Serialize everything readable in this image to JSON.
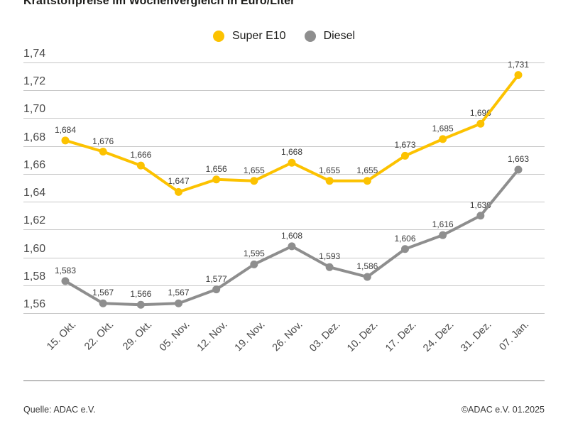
{
  "chart_data": {
    "type": "line",
    "title": "Kraftstoffpreise im Wochenvergleich in Euro/Liter",
    "categories": [
      "15. Okt.",
      "22. Okt.",
      "29. Okt.",
      "05. Nov.",
      "12. Nov.",
      "19. Nov.",
      "26. Nov.",
      "03. Dez.",
      "10. Dez.",
      "17. Dez.",
      "24. Dez.",
      "31. Dez.",
      "07. Jan."
    ],
    "series": [
      {
        "name": "Super E10",
        "color": "#FCC200",
        "values": [
          1.684,
          1.676,
          1.666,
          1.647,
          1.656,
          1.655,
          1.668,
          1.655,
          1.655,
          1.673,
          1.685,
          1.696,
          1.731
        ],
        "point_labels": [
          "1,684",
          "1,676",
          "1,666",
          "1,647",
          "1,656",
          "1,655",
          "1,668",
          "1,655",
          "1,655",
          "1,673",
          "1,685",
          "1,696",
          "1,731"
        ]
      },
      {
        "name": "Diesel",
        "color": "#8E8E8E",
        "values": [
          1.583,
          1.567,
          1.566,
          1.567,
          1.577,
          1.595,
          1.608,
          1.593,
          1.586,
          1.606,
          1.616,
          1.63,
          1.663
        ],
        "point_labels": [
          "1,583",
          "1,567",
          "1,566",
          "1,567",
          "1,577",
          "1,595",
          "1,608",
          "1,593",
          "1,586",
          "1,606",
          "1,616",
          "1,630",
          "1,663"
        ]
      }
    ],
    "yticks": [
      {
        "value": 1.74,
        "label": "1,74"
      },
      {
        "value": 1.72,
        "label": "1,72"
      },
      {
        "value": 1.7,
        "label": "1,70"
      },
      {
        "value": 1.68,
        "label": "1,68"
      },
      {
        "value": 1.66,
        "label": "1,66"
      },
      {
        "value": 1.64,
        "label": "1,64"
      },
      {
        "value": 1.62,
        "label": "1,62"
      },
      {
        "value": 1.6,
        "label": "1,60"
      },
      {
        "value": 1.58,
        "label": "1,58"
      },
      {
        "value": 1.56,
        "label": "1,56"
      }
    ],
    "ylim": [
      1.56,
      1.74
    ],
    "grid": true,
    "legend_position": "top-center"
  },
  "footer": {
    "source": "Quelle: ADAC e.V.",
    "copyright": "©ADAC e.V. 01.2025"
  }
}
